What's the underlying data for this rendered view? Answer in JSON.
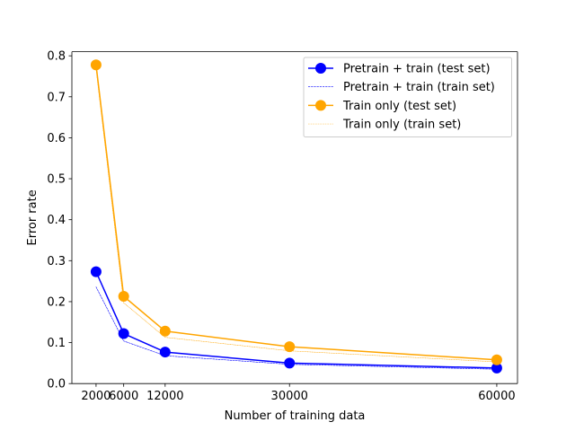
{
  "chart_data": {
    "type": "line",
    "xlabel": "Number of training data",
    "ylabel": "Error rate",
    "xlim": [
      -1500,
      63000
    ],
    "ylim": [
      0,
      0.81
    ],
    "xticks": [
      2000,
      6000,
      12000,
      30000,
      60000
    ],
    "xtick_labels": [
      "2000",
      "6000",
      "12000",
      "30000",
      "60000"
    ],
    "yticks": [
      0.0,
      0.1,
      0.2,
      0.3,
      0.4,
      0.5,
      0.6,
      0.7,
      0.8
    ],
    "ytick_labels": [
      "0.0",
      "0.1",
      "0.2",
      "0.3",
      "0.4",
      "0.5",
      "0.6",
      "0.7",
      "0.8"
    ],
    "grid": false,
    "legend_position": "top-right",
    "x": [
      2000,
      6000,
      12000,
      30000,
      60000
    ],
    "series": [
      {
        "name": "Pretrain + train (test set)",
        "color": "#0000ff",
        "style": "solid-marker",
        "values": [
          0.273,
          0.122,
          0.077,
          0.05,
          0.038
        ]
      },
      {
        "name": "Pretrain + train (train set)",
        "color": "#0000ff",
        "style": "dashed",
        "values": [
          0.236,
          0.104,
          0.068,
          0.047,
          0.035
        ]
      },
      {
        "name": "Train only (test set)",
        "color": "#ffa500",
        "style": "solid-marker",
        "values": [
          0.778,
          0.213,
          0.128,
          0.09,
          0.058
        ]
      },
      {
        "name": "Train only (train set)",
        "color": "#ffa500",
        "style": "dotted",
        "values": [
          0.768,
          0.197,
          0.113,
          0.08,
          0.053
        ]
      }
    ]
  }
}
